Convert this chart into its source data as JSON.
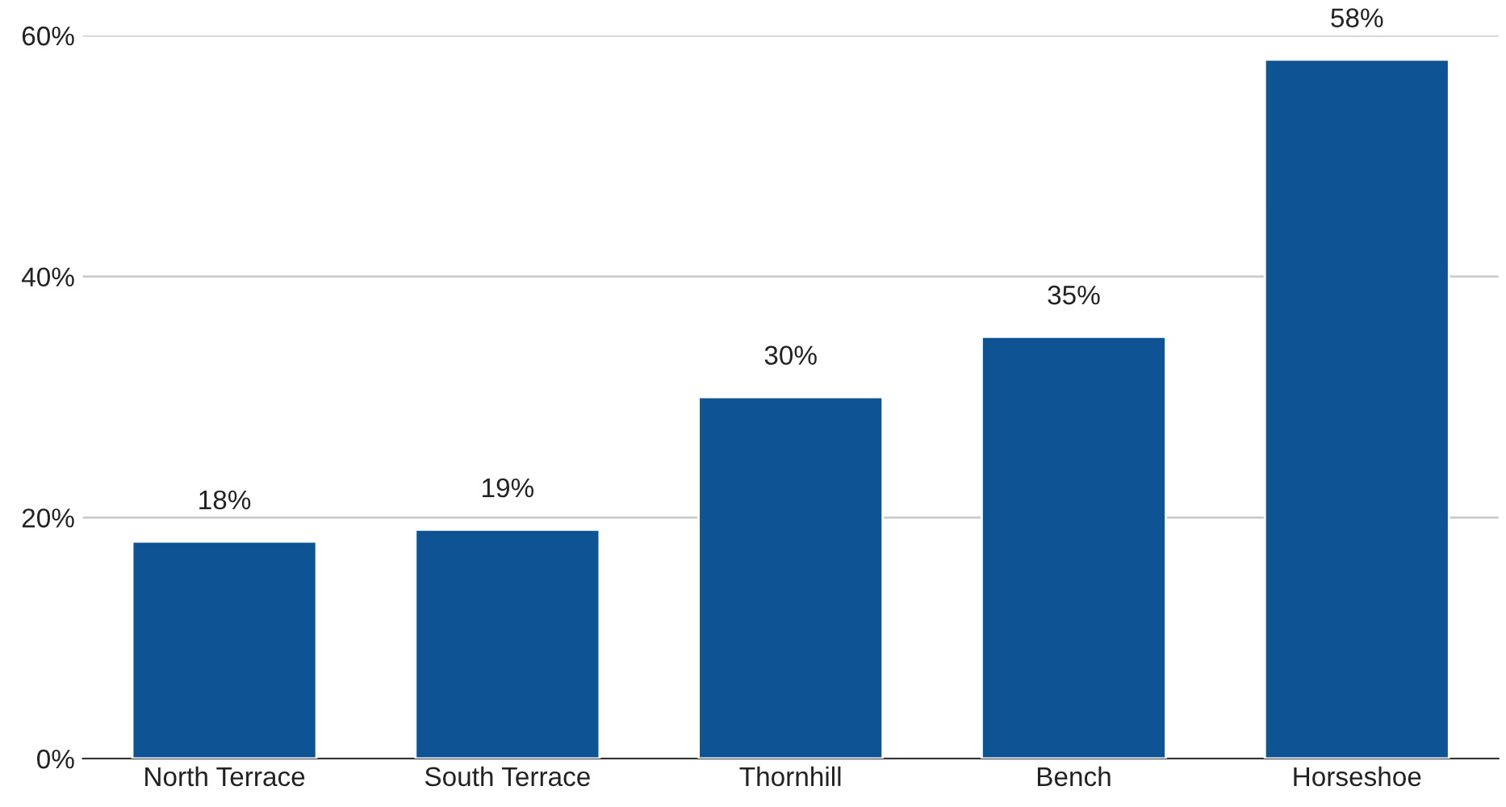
{
  "chart_data": {
    "type": "bar",
    "categories": [
      "North Terrace",
      "South Terrace",
      "Thornhill",
      "Bench",
      "Horseshoe"
    ],
    "values": [
      18,
      19,
      30,
      35,
      58
    ],
    "value_labels": [
      "18%",
      "19%",
      "30%",
      "35%",
      "58%"
    ],
    "color": "#0e5394",
    "ylim": [
      0,
      60
    ],
    "yticks": [
      {
        "value": 0,
        "label": "0%"
      },
      {
        "value": 20,
        "label": "20%"
      },
      {
        "value": 40,
        "label": "40%"
      },
      {
        "value": 60,
        "label": "60%"
      }
    ],
    "grid": "y",
    "legend": false
  }
}
